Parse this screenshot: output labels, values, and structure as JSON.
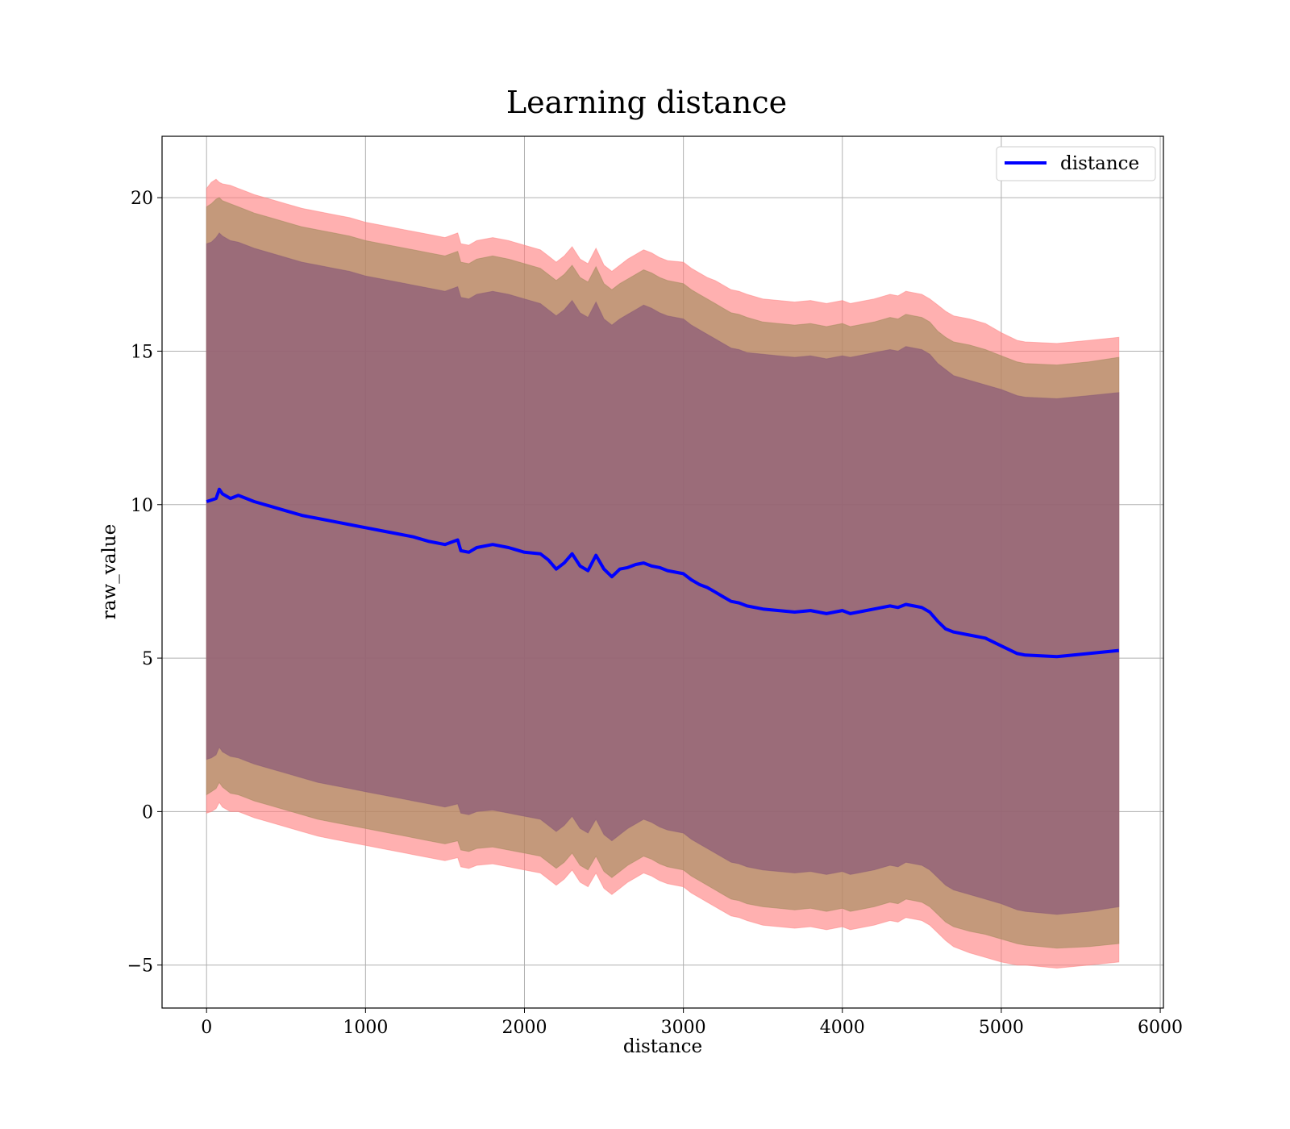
{
  "chart_data": {
    "type": "line",
    "title": "Learning distance",
    "xlabel": "distance",
    "ylabel": "raw_value",
    "xlim": [
      -280,
      6020
    ],
    "ylim": [
      -6.4,
      22
    ],
    "xticks": [
      0,
      1000,
      2000,
      3000,
      4000,
      5000,
      6000
    ],
    "yticks": [
      -5,
      0,
      5,
      10,
      15,
      20
    ],
    "ytick_labels": [
      "−5",
      "0",
      "5",
      "10",
      "15",
      "20"
    ],
    "grid": true,
    "legend": {
      "position": "top-right",
      "entries": [
        "distance"
      ]
    },
    "colors": {
      "line": "#0000ff",
      "band_outer": "#ff7f7f",
      "band_middle": "#a08a5a",
      "band_inner": "#8a5a78"
    },
    "series": [
      {
        "name": "distance",
        "x": [
          0,
          30,
          60,
          80,
          100,
          150,
          200,
          250,
          300,
          400,
          500,
          600,
          700,
          800,
          900,
          1000,
          1100,
          1200,
          1300,
          1400,
          1500,
          1580,
          1600,
          1650,
          1700,
          1800,
          1900,
          2000,
          2100,
          2150,
          2200,
          2250,
          2300,
          2350,
          2400,
          2450,
          2500,
          2550,
          2600,
          2650,
          2700,
          2750,
          2800,
          2850,
          2900,
          3000,
          3050,
          3100,
          3150,
          3200,
          3250,
          3300,
          3350,
          3400,
          3500,
          3600,
          3700,
          3800,
          3900,
          4000,
          4050,
          4100,
          4200,
          4300,
          4350,
          4400,
          4450,
          4500,
          4550,
          4600,
          4650,
          4700,
          4800,
          4900,
          5000,
          5100,
          5150,
          5350,
          5550,
          5740
        ],
        "values": [
          10.1,
          10.15,
          10.2,
          10.5,
          10.35,
          10.2,
          10.3,
          10.2,
          10.1,
          9.95,
          9.8,
          9.65,
          9.55,
          9.45,
          9.35,
          9.25,
          9.15,
          9.05,
          8.95,
          8.8,
          8.7,
          8.85,
          8.5,
          8.45,
          8.6,
          8.7,
          8.6,
          8.45,
          8.4,
          8.2,
          7.9,
          8.1,
          8.4,
          8.0,
          7.85,
          8.35,
          7.9,
          7.65,
          7.9,
          7.95,
          8.05,
          8.1,
          8.0,
          7.95,
          7.85,
          7.75,
          7.55,
          7.4,
          7.3,
          7.15,
          7.0,
          6.85,
          6.8,
          6.7,
          6.6,
          6.55,
          6.5,
          6.55,
          6.45,
          6.55,
          6.45,
          6.5,
          6.6,
          6.7,
          6.65,
          6.75,
          6.7,
          6.65,
          6.5,
          6.2,
          5.95,
          5.85,
          5.75,
          5.65,
          5.4,
          5.15,
          5.1,
          5.05,
          5.15,
          5.25
        ],
        "band_outer_upper": [
          20.3,
          20.5,
          20.6,
          20.5,
          20.45,
          20.4,
          20.3,
          20.2,
          20.1,
          19.95,
          19.8,
          19.65,
          19.55,
          19.45,
          19.35,
          19.2,
          19.1,
          19.0,
          18.9,
          18.8,
          18.7,
          18.85,
          18.5,
          18.45,
          18.6,
          18.7,
          18.6,
          18.45,
          18.3,
          18.1,
          17.9,
          18.1,
          18.4,
          18.0,
          17.85,
          18.35,
          17.8,
          17.6,
          17.8,
          18.0,
          18.15,
          18.3,
          18.2,
          18.05,
          17.95,
          17.9,
          17.7,
          17.55,
          17.4,
          17.3,
          17.15,
          17.0,
          16.95,
          16.85,
          16.7,
          16.65,
          16.6,
          16.65,
          16.55,
          16.65,
          16.55,
          16.6,
          16.7,
          16.85,
          16.8,
          16.95,
          16.9,
          16.85,
          16.7,
          16.5,
          16.3,
          16.15,
          16.05,
          15.9,
          15.6,
          15.35,
          15.3,
          15.25,
          15.35,
          15.45
        ],
        "band_outer_lower": [
          -0.05,
          0.0,
          0.1,
          0.3,
          0.15,
          0.0,
          0.0,
          -0.1,
          -0.2,
          -0.35,
          -0.5,
          -0.65,
          -0.8,
          -0.9,
          -1.0,
          -1.1,
          -1.2,
          -1.3,
          -1.4,
          -1.5,
          -1.6,
          -1.5,
          -1.8,
          -1.85,
          -1.75,
          -1.7,
          -1.8,
          -1.9,
          -2.0,
          -2.2,
          -2.4,
          -2.2,
          -1.9,
          -2.3,
          -2.45,
          -2.0,
          -2.5,
          -2.7,
          -2.5,
          -2.3,
          -2.15,
          -2.0,
          -2.1,
          -2.25,
          -2.35,
          -2.45,
          -2.65,
          -2.8,
          -2.95,
          -3.1,
          -3.25,
          -3.4,
          -3.45,
          -3.55,
          -3.7,
          -3.75,
          -3.8,
          -3.75,
          -3.85,
          -3.75,
          -3.85,
          -3.8,
          -3.7,
          -3.55,
          -3.6,
          -3.45,
          -3.5,
          -3.55,
          -3.7,
          -3.95,
          -4.2,
          -4.4,
          -4.6,
          -4.75,
          -4.9,
          -5.0,
          -5.0,
          -5.1,
          -5.0,
          -4.9
        ],
        "band_middle_upper": [
          19.7,
          19.8,
          19.95,
          20.0,
          19.9,
          19.8,
          19.7,
          19.6,
          19.5,
          19.35,
          19.2,
          19.05,
          18.95,
          18.85,
          18.75,
          18.6,
          18.5,
          18.4,
          18.3,
          18.2,
          18.1,
          18.25,
          17.9,
          17.85,
          18.0,
          18.1,
          18.0,
          17.85,
          17.7,
          17.5,
          17.3,
          17.5,
          17.8,
          17.4,
          17.25,
          17.75,
          17.2,
          17.0,
          17.2,
          17.35,
          17.5,
          17.65,
          17.55,
          17.4,
          17.3,
          17.2,
          17.0,
          16.85,
          16.7,
          16.55,
          16.4,
          16.25,
          16.2,
          16.1,
          15.95,
          15.9,
          15.85,
          15.9,
          15.8,
          15.9,
          15.8,
          15.85,
          15.95,
          16.1,
          16.05,
          16.2,
          16.15,
          16.1,
          15.95,
          15.65,
          15.45,
          15.3,
          15.2,
          15.05,
          14.85,
          14.65,
          14.6,
          14.55,
          14.65,
          14.8
        ],
        "band_middle_lower": [
          0.55,
          0.65,
          0.75,
          0.95,
          0.8,
          0.6,
          0.55,
          0.45,
          0.35,
          0.2,
          0.05,
          -0.1,
          -0.25,
          -0.35,
          -0.45,
          -0.55,
          -0.65,
          -0.75,
          -0.85,
          -0.95,
          -1.05,
          -0.95,
          -1.25,
          -1.3,
          -1.2,
          -1.15,
          -1.25,
          -1.35,
          -1.45,
          -1.65,
          -1.85,
          -1.65,
          -1.35,
          -1.75,
          -1.9,
          -1.45,
          -1.95,
          -2.15,
          -1.95,
          -1.75,
          -1.6,
          -1.45,
          -1.55,
          -1.7,
          -1.8,
          -1.9,
          -2.1,
          -2.25,
          -2.4,
          -2.55,
          -2.7,
          -2.85,
          -2.9,
          -3.0,
          -3.1,
          -3.15,
          -3.2,
          -3.15,
          -3.25,
          -3.15,
          -3.25,
          -3.2,
          -3.1,
          -2.95,
          -3.0,
          -2.85,
          -2.9,
          -2.95,
          -3.1,
          -3.35,
          -3.6,
          -3.75,
          -3.9,
          -4.0,
          -4.15,
          -4.3,
          -4.35,
          -4.45,
          -4.4,
          -4.3
        ],
        "band_inner_upper": [
          18.5,
          18.55,
          18.7,
          18.85,
          18.75,
          18.6,
          18.55,
          18.45,
          18.35,
          18.2,
          18.05,
          17.9,
          17.8,
          17.7,
          17.6,
          17.45,
          17.35,
          17.25,
          17.15,
          17.05,
          16.95,
          17.1,
          16.75,
          16.7,
          16.85,
          16.95,
          16.85,
          16.7,
          16.55,
          16.35,
          16.15,
          16.35,
          16.65,
          16.25,
          16.1,
          16.6,
          16.05,
          15.85,
          16.05,
          16.2,
          16.35,
          16.5,
          16.4,
          16.25,
          16.15,
          16.05,
          15.85,
          15.7,
          15.55,
          15.4,
          15.25,
          15.1,
          15.05,
          14.95,
          14.9,
          14.85,
          14.8,
          14.85,
          14.75,
          14.85,
          14.8,
          14.85,
          14.95,
          15.05,
          15.0,
          15.15,
          15.1,
          15.05,
          14.9,
          14.6,
          14.4,
          14.2,
          14.05,
          13.9,
          13.75,
          13.55,
          13.5,
          13.45,
          13.55,
          13.65
        ],
        "band_inner_lower": [
          1.7,
          1.75,
          1.85,
          2.1,
          1.95,
          1.8,
          1.75,
          1.65,
          1.55,
          1.4,
          1.25,
          1.1,
          0.95,
          0.85,
          0.75,
          0.65,
          0.55,
          0.45,
          0.35,
          0.25,
          0.15,
          0.25,
          -0.05,
          -0.1,
          0.0,
          0.05,
          -0.05,
          -0.15,
          -0.25,
          -0.45,
          -0.65,
          -0.45,
          -0.15,
          -0.55,
          -0.7,
          -0.25,
          -0.75,
          -0.95,
          -0.75,
          -0.55,
          -0.4,
          -0.25,
          -0.35,
          -0.5,
          -0.6,
          -0.7,
          -0.9,
          -1.05,
          -1.2,
          -1.35,
          -1.5,
          -1.65,
          -1.7,
          -1.8,
          -1.9,
          -1.95,
          -2.0,
          -1.95,
          -2.05,
          -1.95,
          -2.05,
          -2.0,
          -1.9,
          -1.75,
          -1.8,
          -1.65,
          -1.7,
          -1.75,
          -1.9,
          -2.15,
          -2.4,
          -2.55,
          -2.7,
          -2.85,
          -3.0,
          -3.2,
          -3.25,
          -3.35,
          -3.25,
          -3.1
        ]
      }
    ]
  }
}
